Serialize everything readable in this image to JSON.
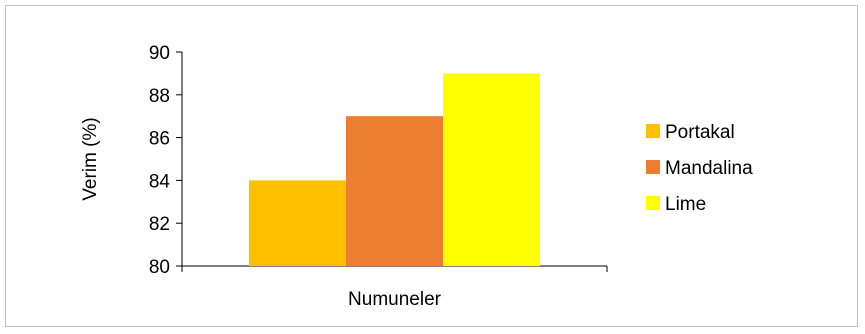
{
  "chart_data": {
    "type": "bar",
    "categories": [
      "Numuneler"
    ],
    "series": [
      {
        "name": "Portakal",
        "values": [
          84
        ],
        "color": "#FFC000"
      },
      {
        "name": "Mandalina",
        "values": [
          87
        ],
        "color": "#ED7D31"
      },
      {
        "name": "Lime",
        "values": [
          89
        ],
        "color": "#FFFF00"
      }
    ],
    "xlabel": "Numuneler",
    "ylabel": "Verim (%)",
    "ylim": [
      80,
      90
    ],
    "yticks": [
      80,
      82,
      84,
      86,
      88,
      90
    ],
    "grid": false,
    "legend_position": "right"
  }
}
